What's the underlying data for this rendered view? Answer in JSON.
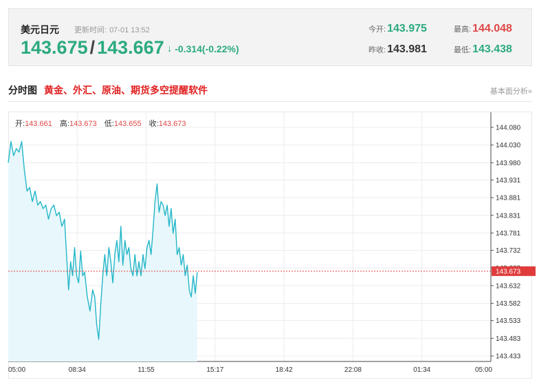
{
  "header": {
    "name": "美元日元",
    "update_label": "更新时间:",
    "update_time": "07-01 13:52",
    "price_main": "143.675",
    "separator": "/",
    "price_alt": "143.667",
    "change_arrow": "↓",
    "change": "-0.314(-0.22%)",
    "stats": {
      "open_label": "今开:",
      "open_value": "143.975",
      "high_label": "最高:",
      "high_value": "144.048",
      "prev_close_label": "昨收:",
      "prev_close_value": "143.981",
      "low_label": "最低:",
      "low_value": "143.438"
    }
  },
  "section": {
    "title": "分时图",
    "ad": "黄金、外汇、原油、期货多空提醒软件",
    "link": "基本面分析»"
  },
  "ohlc": {
    "open_label": "开:",
    "open_value": "143.661",
    "high_label": "高:",
    "high_value": "143.673",
    "low_label": "低:",
    "low_value": "143.655",
    "close_label": "收:",
    "close_value": "143.673"
  },
  "colors": {
    "up_red": "#e04747",
    "down_green": "#2baa80",
    "line": "#22b6c8",
    "area": "#e8f7fb",
    "grid": "#ececec",
    "current_label_bg": "#e03c3c"
  },
  "chart_data": {
    "type": "line",
    "x_ticks": [
      "05:00",
      "08:34",
      "11:55",
      "15:17",
      "18:42",
      "22:08",
      "01:34",
      "05:00"
    ],
    "y_ticks": [
      "144.080",
      "144.030",
      "143.980",
      "143.931",
      "143.881",
      "143.831",
      "143.781",
      "143.732",
      "143.682",
      "143.632",
      "143.582",
      "143.533",
      "143.483",
      "143.433"
    ],
    "ylim": [
      143.433,
      144.08
    ],
    "x_range": [
      0,
      1440
    ],
    "current_price": "143.673",
    "grid": true,
    "series": [
      {
        "x": [
          0,
          8,
          16,
          24,
          32,
          40,
          48,
          56,
          64,
          72,
          80,
          88,
          96,
          104,
          112,
          120,
          128,
          136,
          144,
          152,
          160,
          168,
          174,
          180,
          186,
          192,
          198,
          204,
          210,
          216,
          222,
          228,
          236,
          244,
          252,
          258,
          264,
          270,
          276,
          282,
          288,
          294,
          300,
          306,
          312,
          318,
          324,
          330,
          336,
          342,
          348,
          354,
          360,
          366,
          372,
          378,
          384,
          390,
          396,
          402,
          408,
          414,
          420,
          426,
          432,
          438,
          444,
          450,
          456,
          462,
          468,
          474,
          480,
          486,
          492,
          498,
          504,
          510,
          516,
          522,
          528,
          534,
          540,
          546,
          552,
          558,
          564
        ],
        "y": [
          143.98,
          144.04,
          144.0,
          144.02,
          144.01,
          144.04,
          143.96,
          143.9,
          143.91,
          143.87,
          143.9,
          143.86,
          143.87,
          143.85,
          143.86,
          143.82,
          143.85,
          143.86,
          143.83,
          143.84,
          143.8,
          143.82,
          143.72,
          143.62,
          143.7,
          143.66,
          143.74,
          143.66,
          143.64,
          143.73,
          143.66,
          143.67,
          143.6,
          143.56,
          143.62,
          143.6,
          143.52,
          143.48,
          143.58,
          143.66,
          143.72,
          143.66,
          143.74,
          143.7,
          143.64,
          143.72,
          143.76,
          143.7,
          143.8,
          143.69,
          143.76,
          143.72,
          143.74,
          143.68,
          143.66,
          143.72,
          143.66,
          143.7,
          143.66,
          143.72,
          143.68,
          143.74,
          143.76,
          143.72,
          143.79,
          143.87,
          143.92,
          143.84,
          143.87,
          143.86,
          143.83,
          143.86,
          143.8,
          143.85,
          143.78,
          143.82,
          143.72,
          143.74,
          143.69,
          143.72,
          143.66,
          143.69,
          143.62,
          143.6,
          143.66,
          143.61,
          143.67
        ]
      }
    ]
  }
}
